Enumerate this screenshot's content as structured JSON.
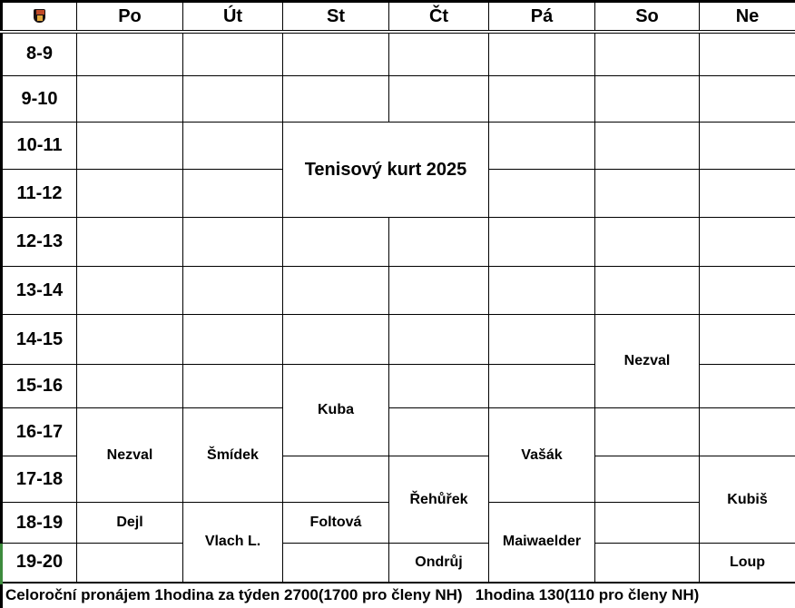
{
  "header": {
    "corner_icon": "crest-icon",
    "days": [
      "Po",
      "Út",
      "St",
      "Čt",
      "Pá",
      "So",
      "Ne"
    ]
  },
  "time_rows": [
    "8-9",
    "9-10",
    "10-11",
    "11-12",
    "12-13",
    "13-14",
    "14-15",
    "15-16",
    "16-17",
    "17-18",
    "18-19",
    "19-20"
  ],
  "title_block": {
    "label": "Tenisový kurt 2025",
    "day_start": "St",
    "day_span": 2,
    "time_start": "10-11",
    "time_span": 2
  },
  "bookings": [
    {
      "day": "Po",
      "time": "16-17",
      "span": 2,
      "label": "Nezval"
    },
    {
      "day": "Po",
      "time": "18-19",
      "span": 1,
      "label": "Dejl"
    },
    {
      "day": "Po",
      "time": "19-20",
      "span": 1,
      "label": ""
    },
    {
      "day": "Út",
      "time": "16-17",
      "span": 2,
      "label": "Šmídek"
    },
    {
      "day": "Út",
      "time": "18-19",
      "span": 2,
      "label": "Vlach L."
    },
    {
      "day": "St",
      "time": "15-16",
      "span": 2,
      "label": "Kuba"
    },
    {
      "day": "St",
      "time": "17-18",
      "span": 1,
      "label": ""
    },
    {
      "day": "St",
      "time": "18-19",
      "span": 1,
      "label": "Foltová"
    },
    {
      "day": "St",
      "time": "19-20",
      "span": 1,
      "label": ""
    },
    {
      "day": "Čt",
      "time": "16-17",
      "span": 1,
      "label": ""
    },
    {
      "day": "Čt",
      "time": "17-18",
      "span": 2,
      "label": "Řehůřek"
    },
    {
      "day": "Čt",
      "time": "19-20",
      "span": 1,
      "label": "Ondrůj"
    },
    {
      "day": "Pá",
      "time": "16-17",
      "span": 2,
      "label": "Vašák"
    },
    {
      "day": "Pá",
      "time": "18-19",
      "span": 2,
      "label": "Maiwaelder"
    },
    {
      "day": "So",
      "time": "14-15",
      "span": 2,
      "label": "Nezval"
    },
    {
      "day": "Ne",
      "time": "16-17",
      "span": 1,
      "label": ""
    },
    {
      "day": "Ne",
      "time": "17-18",
      "span": 2,
      "label": "Kubiš"
    },
    {
      "day": "Ne",
      "time": "19-20",
      "span": 1,
      "label": "Loup"
    }
  ],
  "footer": {
    "text": "Celoroční pronájem 1hodina za týden 2700(1700 pro členy NH)   1hodina 130(110 pro členy NH)"
  },
  "colors": {
    "grid": "#000000",
    "background": "#ffffff",
    "edge_mark_green": "#3d8b3d",
    "crest_red": "#c04a28",
    "crest_yellow": "#e2a93e",
    "crest_dark": "#1a1212"
  }
}
